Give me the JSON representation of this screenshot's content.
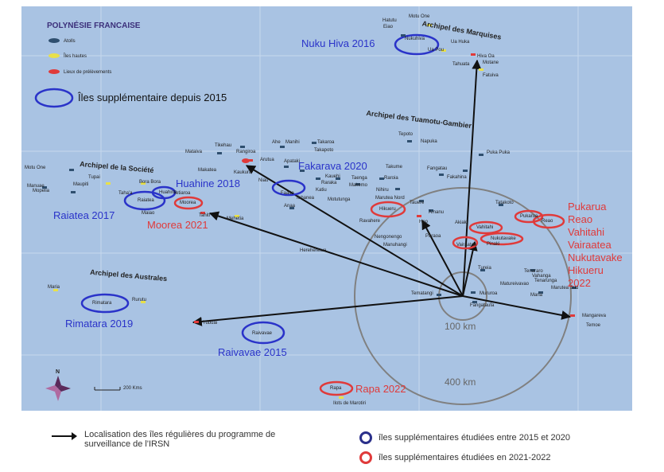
{
  "map": {
    "title": "POLYNÉSIE FRANCAISE",
    "legend": {
      "atolls": "Atolls",
      "high_islands": "Îles hautes",
      "sampling": "Lieux de prélèvements",
      "supplementary": "Îles supplémentaire depuis 2015"
    },
    "archipelagos": {
      "marquises": "Archipel des Marquises",
      "tuamotu": "Archipel des Tuamotu-Gambier",
      "societe": "Archipel de la Société",
      "australes": "Archipel des Australes"
    },
    "islands": {
      "hatutu": "Hatutu",
      "eiao": "Eiao",
      "motu_one_n": "Motu One",
      "nukuhiva": "Nukuhiva",
      "ua_huka": "Ua Huka",
      "ua_pou": "Ua Pou",
      "hiva_oa": "Hiva Oa",
      "tahuata": "Tahuata",
      "motane": "Motane",
      "fatuiva": "Fatuiva",
      "tepoto": "Tepoto",
      "napuka": "Napuka",
      "puka_puka": "Puka Puka",
      "tikehau": "Tikehau",
      "rangiroa": "Rangiroa",
      "ahe": "Ahe",
      "manihi": "Manihi",
      "takaroa": "Takaroa",
      "takapoto": "Takapoto",
      "mataiva": "Mataiva",
      "makatea": "Makatea",
      "arutua": "Arutua",
      "apataki": "Apataki",
      "kaukura": "Kaukura",
      "kauehi": "Kauehi",
      "raraka": "Raraka",
      "taenga": "Taenga",
      "makemo": "Makemo",
      "katiu": "Katiu",
      "niau": "Niau",
      "faaite": "Faaite",
      "anaa": "Anaa",
      "tahanea": "Tahanea",
      "motutunga": "Motutunga",
      "nihiru": "Nihiru",
      "marutea_nord": "Marutea Nord",
      "takume": "Takume",
      "raroia": "Raroia",
      "fangatau": "Fangatau",
      "fakahina": "Fakahina",
      "ravahere": "Ravahere",
      "hikueru_map": "Hikueru",
      "tauere": "Tauere",
      "amanu": "Amanu",
      "hao": "Hao",
      "akiaki": "Akiaki",
      "vahitahi_map": "Vahitahi",
      "nukutavake_map": "Nukutavake",
      "pinaki": "Pinaki",
      "tatakoto": "Tatakoto",
      "pukarua_map": "Pukarua",
      "reao_map": "Reao",
      "nengonengo": "Nengonengo",
      "manuhangi": "Manuhangi",
      "paraoa": "Paraoa",
      "vairaatea_map": "Vairaatea",
      "tematangi": "Tematangi",
      "mururoa": "Mururoa",
      "fangataufa": "Fangataufa",
      "tureia": "Tureia",
      "tenararo": "Tenararo",
      "vahanga": "Vahanga",
      "tenarunga": "Tenarunga",
      "matureivavao": "Matureivavao",
      "maria_e": "Maria",
      "mangareva": "Mangareva",
      "temoe": "Temoe",
      "marutea_sud": "Marutea Sud",
      "hereheretue": "Hereheretue",
      "motu_one_w": "Motu One",
      "manuae": "Manuae",
      "mopelia": "Mopelia",
      "maupiti": "Maupiti",
      "tupai": "Tupai",
      "bora_bora": "Bora Bora",
      "huahine_map": "Huahine",
      "raiatea_map": "Raiatea",
      "tahaa": "Taha'a",
      "moorea_map": "Moorea",
      "tetiaroa": "Tetiaroa",
      "tahiti": "Tahiti",
      "maiao": "Maiao",
      "mehetia": "Mehetia",
      "maria_w": "Maria",
      "rimatara_map": "Rimatara",
      "rurutu": "Rurutu",
      "tubuai": "Tubuai",
      "raivavae_map": "Raivavae",
      "rapa_map": "Rapa",
      "marotiri": "Ilots de Marotiri"
    },
    "annotations": {
      "nuku_hiva": "Nuku Hiva 2016",
      "fakarava": "Fakarava 2020",
      "huahine": "Huahine 2018",
      "raiatea": "Raiatea 2017",
      "moorea": "Moorea 2021",
      "rimatara": "Rimatara 2019",
      "raivavae": "Raivavae 2015",
      "rapa": "Rapa 2022",
      "tuamotu_list": [
        "Pukarua",
        "Reao",
        "Vahitahi",
        "Vairaatea",
        "Nukutavake",
        "Hikueru",
        "2022"
      ]
    },
    "distances": {
      "inner": "100 km",
      "outer": "400 km"
    },
    "compass": "N",
    "scale_label": "200 Kms",
    "colors": {
      "ocean": "#a9c3e3",
      "blue_circle": "#2a33c9",
      "red_circle": "#e03a3a",
      "arrow": "#111111"
    }
  },
  "footer": {
    "arrow_legend": "Localisation des îles régulières du programme de surveillance de l'IRSN",
    "blue_legend": "îles supplémentaires étudiées entre 2015 et 2020",
    "red_legend": "îles supplémentaires étudiées en 2021-2022"
  }
}
